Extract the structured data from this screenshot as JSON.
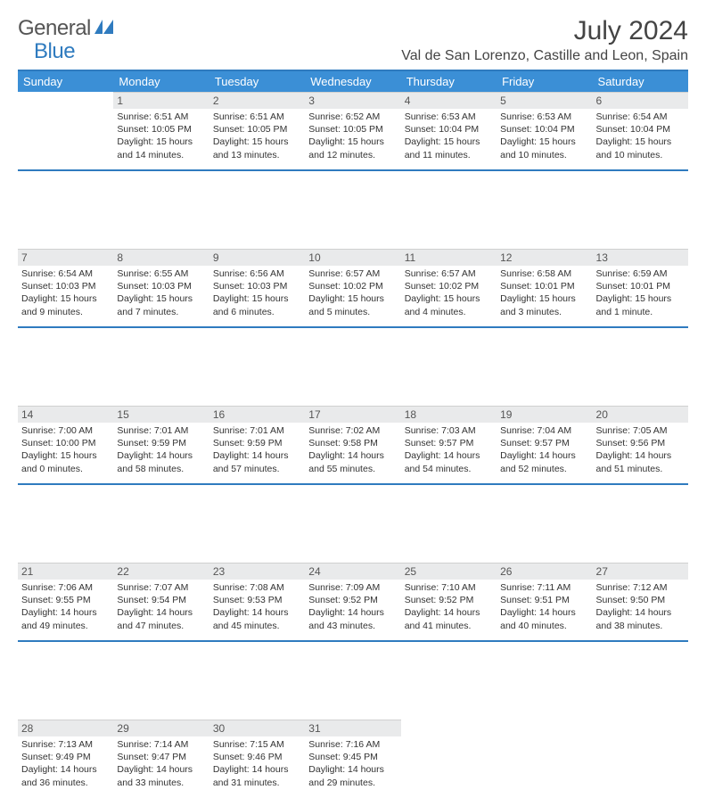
{
  "logo": {
    "word1": "General",
    "word2": "Blue"
  },
  "title": "July 2024",
  "location": "Val de San Lorenzo, Castille and Leon, Spain",
  "colors": {
    "accent": "#2f7bbf",
    "header_bg": "#3b8fd6",
    "daybar_bg": "#e9eaeb",
    "text": "#333333"
  },
  "day_headers": [
    "Sunday",
    "Monday",
    "Tuesday",
    "Wednesday",
    "Thursday",
    "Friday",
    "Saturday"
  ],
  "weeks": [
    [
      null,
      {
        "n": "1",
        "sr": "Sunrise: 6:51 AM",
        "ss": "Sunset: 10:05 PM",
        "dl": "Daylight: 15 hours and 14 minutes."
      },
      {
        "n": "2",
        "sr": "Sunrise: 6:51 AM",
        "ss": "Sunset: 10:05 PM",
        "dl": "Daylight: 15 hours and 13 minutes."
      },
      {
        "n": "3",
        "sr": "Sunrise: 6:52 AM",
        "ss": "Sunset: 10:05 PM",
        "dl": "Daylight: 15 hours and 12 minutes."
      },
      {
        "n": "4",
        "sr": "Sunrise: 6:53 AM",
        "ss": "Sunset: 10:04 PM",
        "dl": "Daylight: 15 hours and 11 minutes."
      },
      {
        "n": "5",
        "sr": "Sunrise: 6:53 AM",
        "ss": "Sunset: 10:04 PM",
        "dl": "Daylight: 15 hours and 10 minutes."
      },
      {
        "n": "6",
        "sr": "Sunrise: 6:54 AM",
        "ss": "Sunset: 10:04 PM",
        "dl": "Daylight: 15 hours and 10 minutes."
      }
    ],
    [
      {
        "n": "7",
        "sr": "Sunrise: 6:54 AM",
        "ss": "Sunset: 10:03 PM",
        "dl": "Daylight: 15 hours and 9 minutes."
      },
      {
        "n": "8",
        "sr": "Sunrise: 6:55 AM",
        "ss": "Sunset: 10:03 PM",
        "dl": "Daylight: 15 hours and 7 minutes."
      },
      {
        "n": "9",
        "sr": "Sunrise: 6:56 AM",
        "ss": "Sunset: 10:03 PM",
        "dl": "Daylight: 15 hours and 6 minutes."
      },
      {
        "n": "10",
        "sr": "Sunrise: 6:57 AM",
        "ss": "Sunset: 10:02 PM",
        "dl": "Daylight: 15 hours and 5 minutes."
      },
      {
        "n": "11",
        "sr": "Sunrise: 6:57 AM",
        "ss": "Sunset: 10:02 PM",
        "dl": "Daylight: 15 hours and 4 minutes."
      },
      {
        "n": "12",
        "sr": "Sunrise: 6:58 AM",
        "ss": "Sunset: 10:01 PM",
        "dl": "Daylight: 15 hours and 3 minutes."
      },
      {
        "n": "13",
        "sr": "Sunrise: 6:59 AM",
        "ss": "Sunset: 10:01 PM",
        "dl": "Daylight: 15 hours and 1 minute."
      }
    ],
    [
      {
        "n": "14",
        "sr": "Sunrise: 7:00 AM",
        "ss": "Sunset: 10:00 PM",
        "dl": "Daylight: 15 hours and 0 minutes."
      },
      {
        "n": "15",
        "sr": "Sunrise: 7:01 AM",
        "ss": "Sunset: 9:59 PM",
        "dl": "Daylight: 14 hours and 58 minutes."
      },
      {
        "n": "16",
        "sr": "Sunrise: 7:01 AM",
        "ss": "Sunset: 9:59 PM",
        "dl": "Daylight: 14 hours and 57 minutes."
      },
      {
        "n": "17",
        "sr": "Sunrise: 7:02 AM",
        "ss": "Sunset: 9:58 PM",
        "dl": "Daylight: 14 hours and 55 minutes."
      },
      {
        "n": "18",
        "sr": "Sunrise: 7:03 AM",
        "ss": "Sunset: 9:57 PM",
        "dl": "Daylight: 14 hours and 54 minutes."
      },
      {
        "n": "19",
        "sr": "Sunrise: 7:04 AM",
        "ss": "Sunset: 9:57 PM",
        "dl": "Daylight: 14 hours and 52 minutes."
      },
      {
        "n": "20",
        "sr": "Sunrise: 7:05 AM",
        "ss": "Sunset: 9:56 PM",
        "dl": "Daylight: 14 hours and 51 minutes."
      }
    ],
    [
      {
        "n": "21",
        "sr": "Sunrise: 7:06 AM",
        "ss": "Sunset: 9:55 PM",
        "dl": "Daylight: 14 hours and 49 minutes."
      },
      {
        "n": "22",
        "sr": "Sunrise: 7:07 AM",
        "ss": "Sunset: 9:54 PM",
        "dl": "Daylight: 14 hours and 47 minutes."
      },
      {
        "n": "23",
        "sr": "Sunrise: 7:08 AM",
        "ss": "Sunset: 9:53 PM",
        "dl": "Daylight: 14 hours and 45 minutes."
      },
      {
        "n": "24",
        "sr": "Sunrise: 7:09 AM",
        "ss": "Sunset: 9:52 PM",
        "dl": "Daylight: 14 hours and 43 minutes."
      },
      {
        "n": "25",
        "sr": "Sunrise: 7:10 AM",
        "ss": "Sunset: 9:52 PM",
        "dl": "Daylight: 14 hours and 41 minutes."
      },
      {
        "n": "26",
        "sr": "Sunrise: 7:11 AM",
        "ss": "Sunset: 9:51 PM",
        "dl": "Daylight: 14 hours and 40 minutes."
      },
      {
        "n": "27",
        "sr": "Sunrise: 7:12 AM",
        "ss": "Sunset: 9:50 PM",
        "dl": "Daylight: 14 hours and 38 minutes."
      }
    ],
    [
      {
        "n": "28",
        "sr": "Sunrise: 7:13 AM",
        "ss": "Sunset: 9:49 PM",
        "dl": "Daylight: 14 hours and 36 minutes."
      },
      {
        "n": "29",
        "sr": "Sunrise: 7:14 AM",
        "ss": "Sunset: 9:47 PM",
        "dl": "Daylight: 14 hours and 33 minutes."
      },
      {
        "n": "30",
        "sr": "Sunrise: 7:15 AM",
        "ss": "Sunset: 9:46 PM",
        "dl": "Daylight: 14 hours and 31 minutes."
      },
      {
        "n": "31",
        "sr": "Sunrise: 7:16 AM",
        "ss": "Sunset: 9:45 PM",
        "dl": "Daylight: 14 hours and 29 minutes."
      },
      null,
      null,
      null
    ]
  ]
}
